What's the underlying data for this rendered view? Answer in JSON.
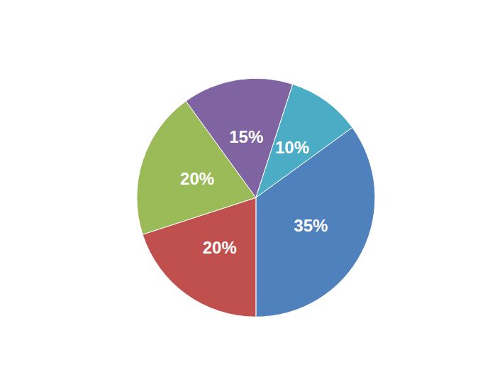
{
  "chart_data": {
    "type": "pie",
    "values": [
      35,
      20,
      20,
      15,
      10
    ],
    "value_labels": [
      "35%",
      "20%",
      "20%",
      "15%",
      "10%"
    ],
    "colors": [
      "#4f81bd",
      "#c0504d",
      "#9bbb59",
      "#8064a2",
      "#4bacc6"
    ],
    "data_labels": true
  }
}
